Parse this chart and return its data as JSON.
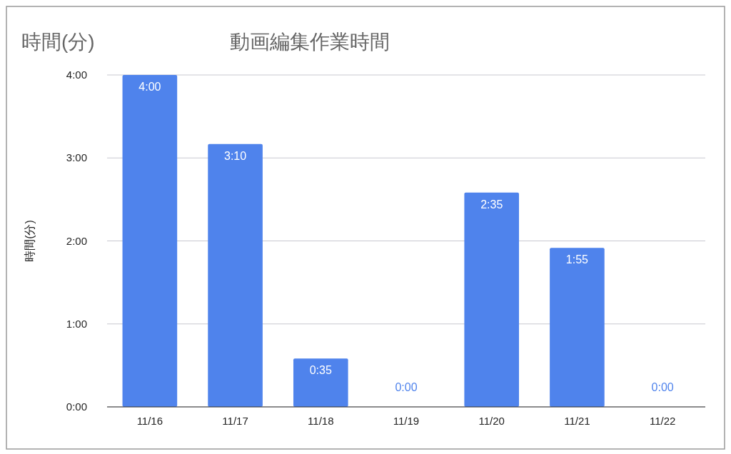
{
  "chart_data": {
    "type": "bar",
    "title": "動画編集作業時間",
    "ylabel": "時間(分)",
    "annotations": [
      "時間(分)"
    ],
    "categories": [
      "11/16",
      "11/17",
      "11/18",
      "11/19",
      "11/20",
      "11/21",
      "11/22"
    ],
    "values": [
      4,
      3.1667,
      0.5833,
      0,
      2.5833,
      1.9167,
      0
    ],
    "value_labels": [
      "4:00",
      "3:10",
      "0:35",
      "0:00",
      "2:35",
      "1:55",
      "0:00"
    ],
    "color": "#4f83ec",
    "ylim": [
      0,
      4
    ],
    "yticks": [
      {
        "value": 0,
        "label": "0:00"
      },
      {
        "value": 1,
        "label": "1:00"
      },
      {
        "value": 2,
        "label": "2:00"
      },
      {
        "value": 3,
        "label": "3:00"
      },
      {
        "value": 4,
        "label": "4:00"
      }
    ],
    "grid": "y"
  }
}
